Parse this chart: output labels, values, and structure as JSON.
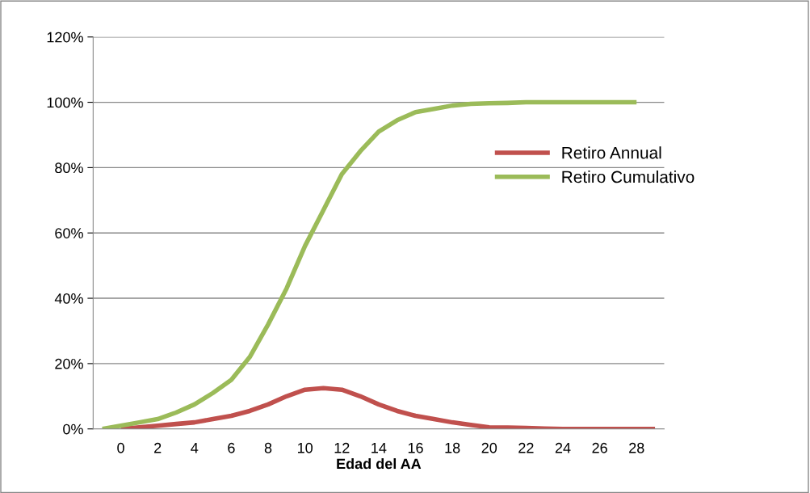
{
  "chart_data": {
    "type": "line",
    "xlabel": "Edad del AA",
    "categories": [
      null,
      "0",
      null,
      "2",
      null,
      "4",
      null,
      "6",
      null,
      "8",
      null,
      "10",
      null,
      "12",
      null,
      "14",
      null,
      "16",
      null,
      "18",
      null,
      "20",
      null,
      "22",
      null,
      "24",
      null,
      "26",
      null,
      "28",
      null
    ],
    "series": [
      {
        "name": "Retiro Annual",
        "color": "#c0504d",
        "values": [
          null,
          0,
          0.5,
          1,
          1.5,
          2,
          3,
          4,
          5.5,
          7.5,
          10,
          12,
          12.5,
          12,
          10,
          7.5,
          5.5,
          4,
          3,
          2,
          1.2,
          0.5,
          0.4,
          0.3,
          0.1,
          0,
          0,
          0,
          0,
          0,
          0
        ]
      },
      {
        "name": "Retiro Cumulativo",
        "color": "#9bbb59",
        "values": [
          0,
          1,
          2,
          3,
          5,
          7.5,
          11,
          15,
          22,
          32,
          43,
          56,
          67,
          78,
          85,
          91,
          94.5,
          97,
          98,
          99,
          99.5,
          99.7,
          99.8,
          100,
          100,
          100,
          100,
          100,
          100,
          100,
          null
        ]
      }
    ],
    "ylim": [
      0,
      120
    ],
    "yticks": [
      {
        "value": 0,
        "label": "0%"
      },
      {
        "value": 20,
        "label": "20%"
      },
      {
        "value": 40,
        "label": "40%"
      },
      {
        "value": 60,
        "label": "60%"
      },
      {
        "value": 80,
        "label": "80%"
      },
      {
        "value": 100,
        "label": "100%"
      },
      {
        "value": 120,
        "label": "120%"
      }
    ],
    "grid": "y",
    "legend": "center right",
    "marker": "none",
    "line_style": "solid"
  }
}
